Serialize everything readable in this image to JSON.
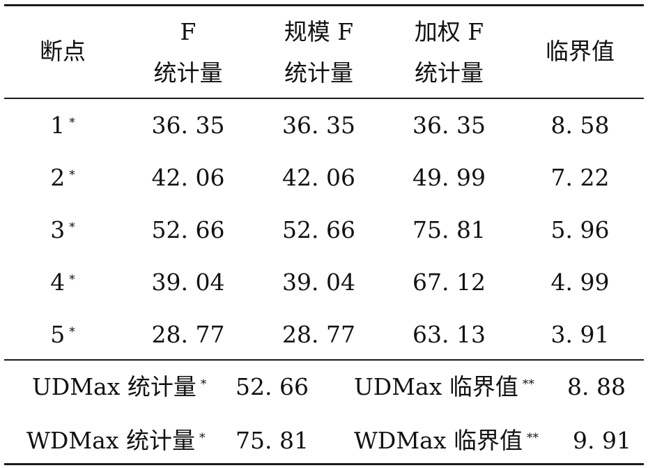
{
  "table": {
    "headers": [
      {
        "line1": "断点",
        "line2": ""
      },
      {
        "line1": "F",
        "line2": "统计量"
      },
      {
        "line1": "规模 F",
        "line2": "统计量"
      },
      {
        "line1": "加权 F",
        "line2": "统计量"
      },
      {
        "line1": "临界值",
        "line2": ""
      }
    ],
    "rows": [
      {
        "breakpoint": "1",
        "mark": "*",
        "f": "36. 35",
        "scale_f": "36. 35",
        "weighted_f": "36. 35",
        "critical": "8. 58"
      },
      {
        "breakpoint": "2",
        "mark": "*",
        "f": "42. 06",
        "scale_f": "42. 06",
        "weighted_f": "49. 99",
        "critical": "7. 22"
      },
      {
        "breakpoint": "3",
        "mark": "*",
        "f": "52. 66",
        "scale_f": "52. 66",
        "weighted_f": "75. 81",
        "critical": "5. 96"
      },
      {
        "breakpoint": "4",
        "mark": "*",
        "f": "39. 04",
        "scale_f": "39. 04",
        "weighted_f": "67. 12",
        "critical": "4. 99"
      },
      {
        "breakpoint": "5",
        "mark": "*",
        "f": "28. 77",
        "scale_f": "28. 77",
        "weighted_f": "63. 13",
        "critical": "3. 91"
      }
    ],
    "footer": [
      {
        "stat_label": "UDMax 统计量",
        "stat_mark": "*",
        "stat_value": "52. 66",
        "crit_label": "UDMax 临界值",
        "crit_mark": "**",
        "crit_value": "8. 88"
      },
      {
        "stat_label": "WDMax 统计量",
        "stat_mark": "*",
        "stat_value": "75. 81",
        "crit_label": "WDMax 临界值",
        "crit_mark": "**",
        "crit_value": "9. 91"
      }
    ]
  }
}
